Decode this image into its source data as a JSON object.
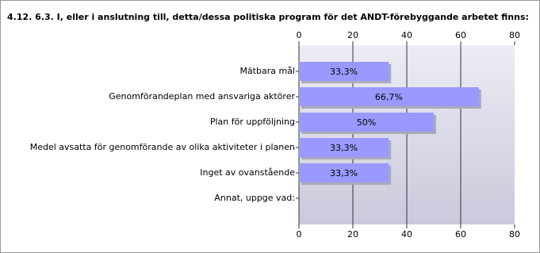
{
  "chart_data": {
    "type": "bar",
    "orientation": "horizontal",
    "title": "4.12. 6.3. I, eller i anslutning till, detta/dessa politiska program för det ANDT-förebyggande arbetet finns:",
    "categories": [
      "Mätbara mål",
      "Genomförandeplan med ansvariga aktörer",
      "Plan för uppföljning",
      "Medel avsatta för genomförande av olika aktiviteter i planen",
      "Inget av ovanstående",
      "Annat, uppge vad:"
    ],
    "values": [
      33.3,
      66.7,
      50,
      33.3,
      33.3,
      0
    ],
    "value_labels": [
      "33,3%",
      "66,7%",
      "50%",
      "33,3%",
      "33,3%",
      null
    ],
    "color": "#9999ff",
    "xlim": [
      0,
      80
    ],
    "xticks": [
      0,
      20,
      40,
      60,
      80
    ],
    "grid": true
  }
}
